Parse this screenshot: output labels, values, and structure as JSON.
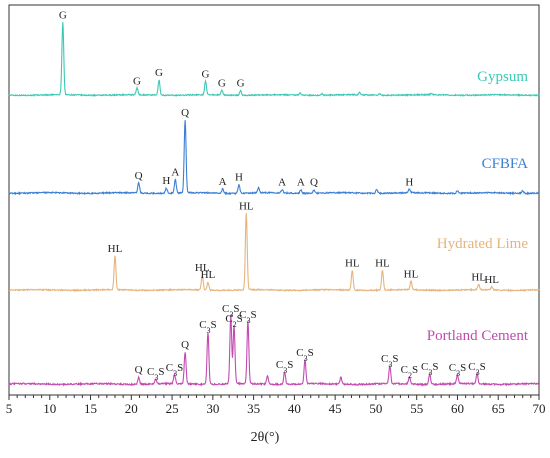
{
  "chart_data": {
    "type": "line",
    "title": "",
    "xlabel": "2θ(°)",
    "ylabel": "",
    "xlim": [
      5,
      70
    ],
    "grid": false,
    "legend": "none",
    "x_ticks": [
      "5",
      "10",
      "15",
      "20",
      "25",
      "30",
      "35",
      "40",
      "45",
      "50",
      "55",
      "60",
      "65",
      "70"
    ],
    "series": [
      {
        "name": "Gypsum",
        "color": "#3cc8b4",
        "peaks": [
          {
            "x": 11.6,
            "label": "G",
            "height": 0.98
          },
          {
            "x": 20.7,
            "label": "G",
            "height": 0.09
          },
          {
            "x": 23.4,
            "label": "G",
            "height": 0.2
          },
          {
            "x": 29.1,
            "label": "G",
            "height": 0.18
          },
          {
            "x": 31.1,
            "label": "G",
            "height": 0.06
          },
          {
            "x": 33.4,
            "label": "G",
            "height": 0.06
          },
          {
            "x": 40.7,
            "label": "",
            "height": 0.03
          },
          {
            "x": 43.4,
            "label": "",
            "height": 0.02
          },
          {
            "x": 48.0,
            "label": "",
            "height": 0.03
          },
          {
            "x": 50.5,
            "label": "",
            "height": 0.02
          },
          {
            "x": 56.8,
            "label": "",
            "height": 0.02
          }
        ]
      },
      {
        "name": "CFBFA",
        "color": "#3b7fd4",
        "peaks": [
          {
            "x": 20.9,
            "label": "Q",
            "height": 0.12
          },
          {
            "x": 24.3,
            "label": "H",
            "height": 0.06
          },
          {
            "x": 25.4,
            "label": "A",
            "height": 0.16
          },
          {
            "x": 26.6,
            "label": "Q",
            "height": 0.86
          },
          {
            "x": 31.2,
            "label": "A",
            "height": 0.05
          },
          {
            "x": 33.2,
            "label": "H",
            "height": 0.1
          },
          {
            "x": 35.6,
            "label": "",
            "height": 0.06
          },
          {
            "x": 38.5,
            "label": "A",
            "height": 0.04
          },
          {
            "x": 40.8,
            "label": "A",
            "height": 0.04
          },
          {
            "x": 42.4,
            "label": "Q",
            "height": 0.04
          },
          {
            "x": 50.1,
            "label": "",
            "height": 0.05
          },
          {
            "x": 54.1,
            "label": "H",
            "height": 0.04
          },
          {
            "x": 60.0,
            "label": "",
            "height": 0.03
          },
          {
            "x": 68.0,
            "label": "",
            "height": 0.03
          }
        ]
      },
      {
        "name": "Hydrated Lime",
        "color": "#e6b47c",
        "peaks": [
          {
            "x": 18.0,
            "label": "HL",
            "height": 0.43
          },
          {
            "x": 28.7,
            "label": "HL",
            "height": 0.19
          },
          {
            "x": 29.4,
            "label": "HL",
            "height": 0.1
          },
          {
            "x": 34.1,
            "label": "HL",
            "height": 0.97
          },
          {
            "x": 47.1,
            "label": "HL",
            "height": 0.25
          },
          {
            "x": 50.8,
            "label": "HL",
            "height": 0.25
          },
          {
            "x": 54.3,
            "label": "HL",
            "height": 0.11
          },
          {
            "x": 62.6,
            "label": "HL",
            "height": 0.07
          },
          {
            "x": 64.2,
            "label": "HL",
            "height": 0.04
          }
        ]
      },
      {
        "name": "Portland Cement",
        "color": "#c24ab0",
        "peaks": [
          {
            "x": 20.9,
            "label": "Q",
            "height": 0.07
          },
          {
            "x": 23.0,
            "label": "C3S",
            "height": 0.05
          },
          {
            "x": 25.3,
            "label": "C3S",
            "height": 0.09
          },
          {
            "x": 26.6,
            "label": "Q",
            "height": 0.32
          },
          {
            "x": 29.4,
            "label": "C3S",
            "height": 0.52
          },
          {
            "x": 32.2,
            "label": "C3S",
            "height": 0.68
          },
          {
            "x": 32.6,
            "label": "C2S",
            "height": 0.58
          },
          {
            "x": 34.3,
            "label": "C3S",
            "height": 0.62
          },
          {
            "x": 36.7,
            "label": "",
            "height": 0.08
          },
          {
            "x": 38.8,
            "label": "C3S",
            "height": 0.12
          },
          {
            "x": 41.3,
            "label": "C3S",
            "height": 0.24
          },
          {
            "x": 45.7,
            "label": "",
            "height": 0.07
          },
          {
            "x": 51.7,
            "label": "C3S",
            "height": 0.18
          },
          {
            "x": 54.1,
            "label": "C2S",
            "height": 0.07
          },
          {
            "x": 56.6,
            "label": "C3S",
            "height": 0.1
          },
          {
            "x": 60.0,
            "label": "C3S",
            "height": 0.09
          },
          {
            "x": 62.4,
            "label": "C3S",
            "height": 0.1
          }
        ]
      }
    ]
  }
}
